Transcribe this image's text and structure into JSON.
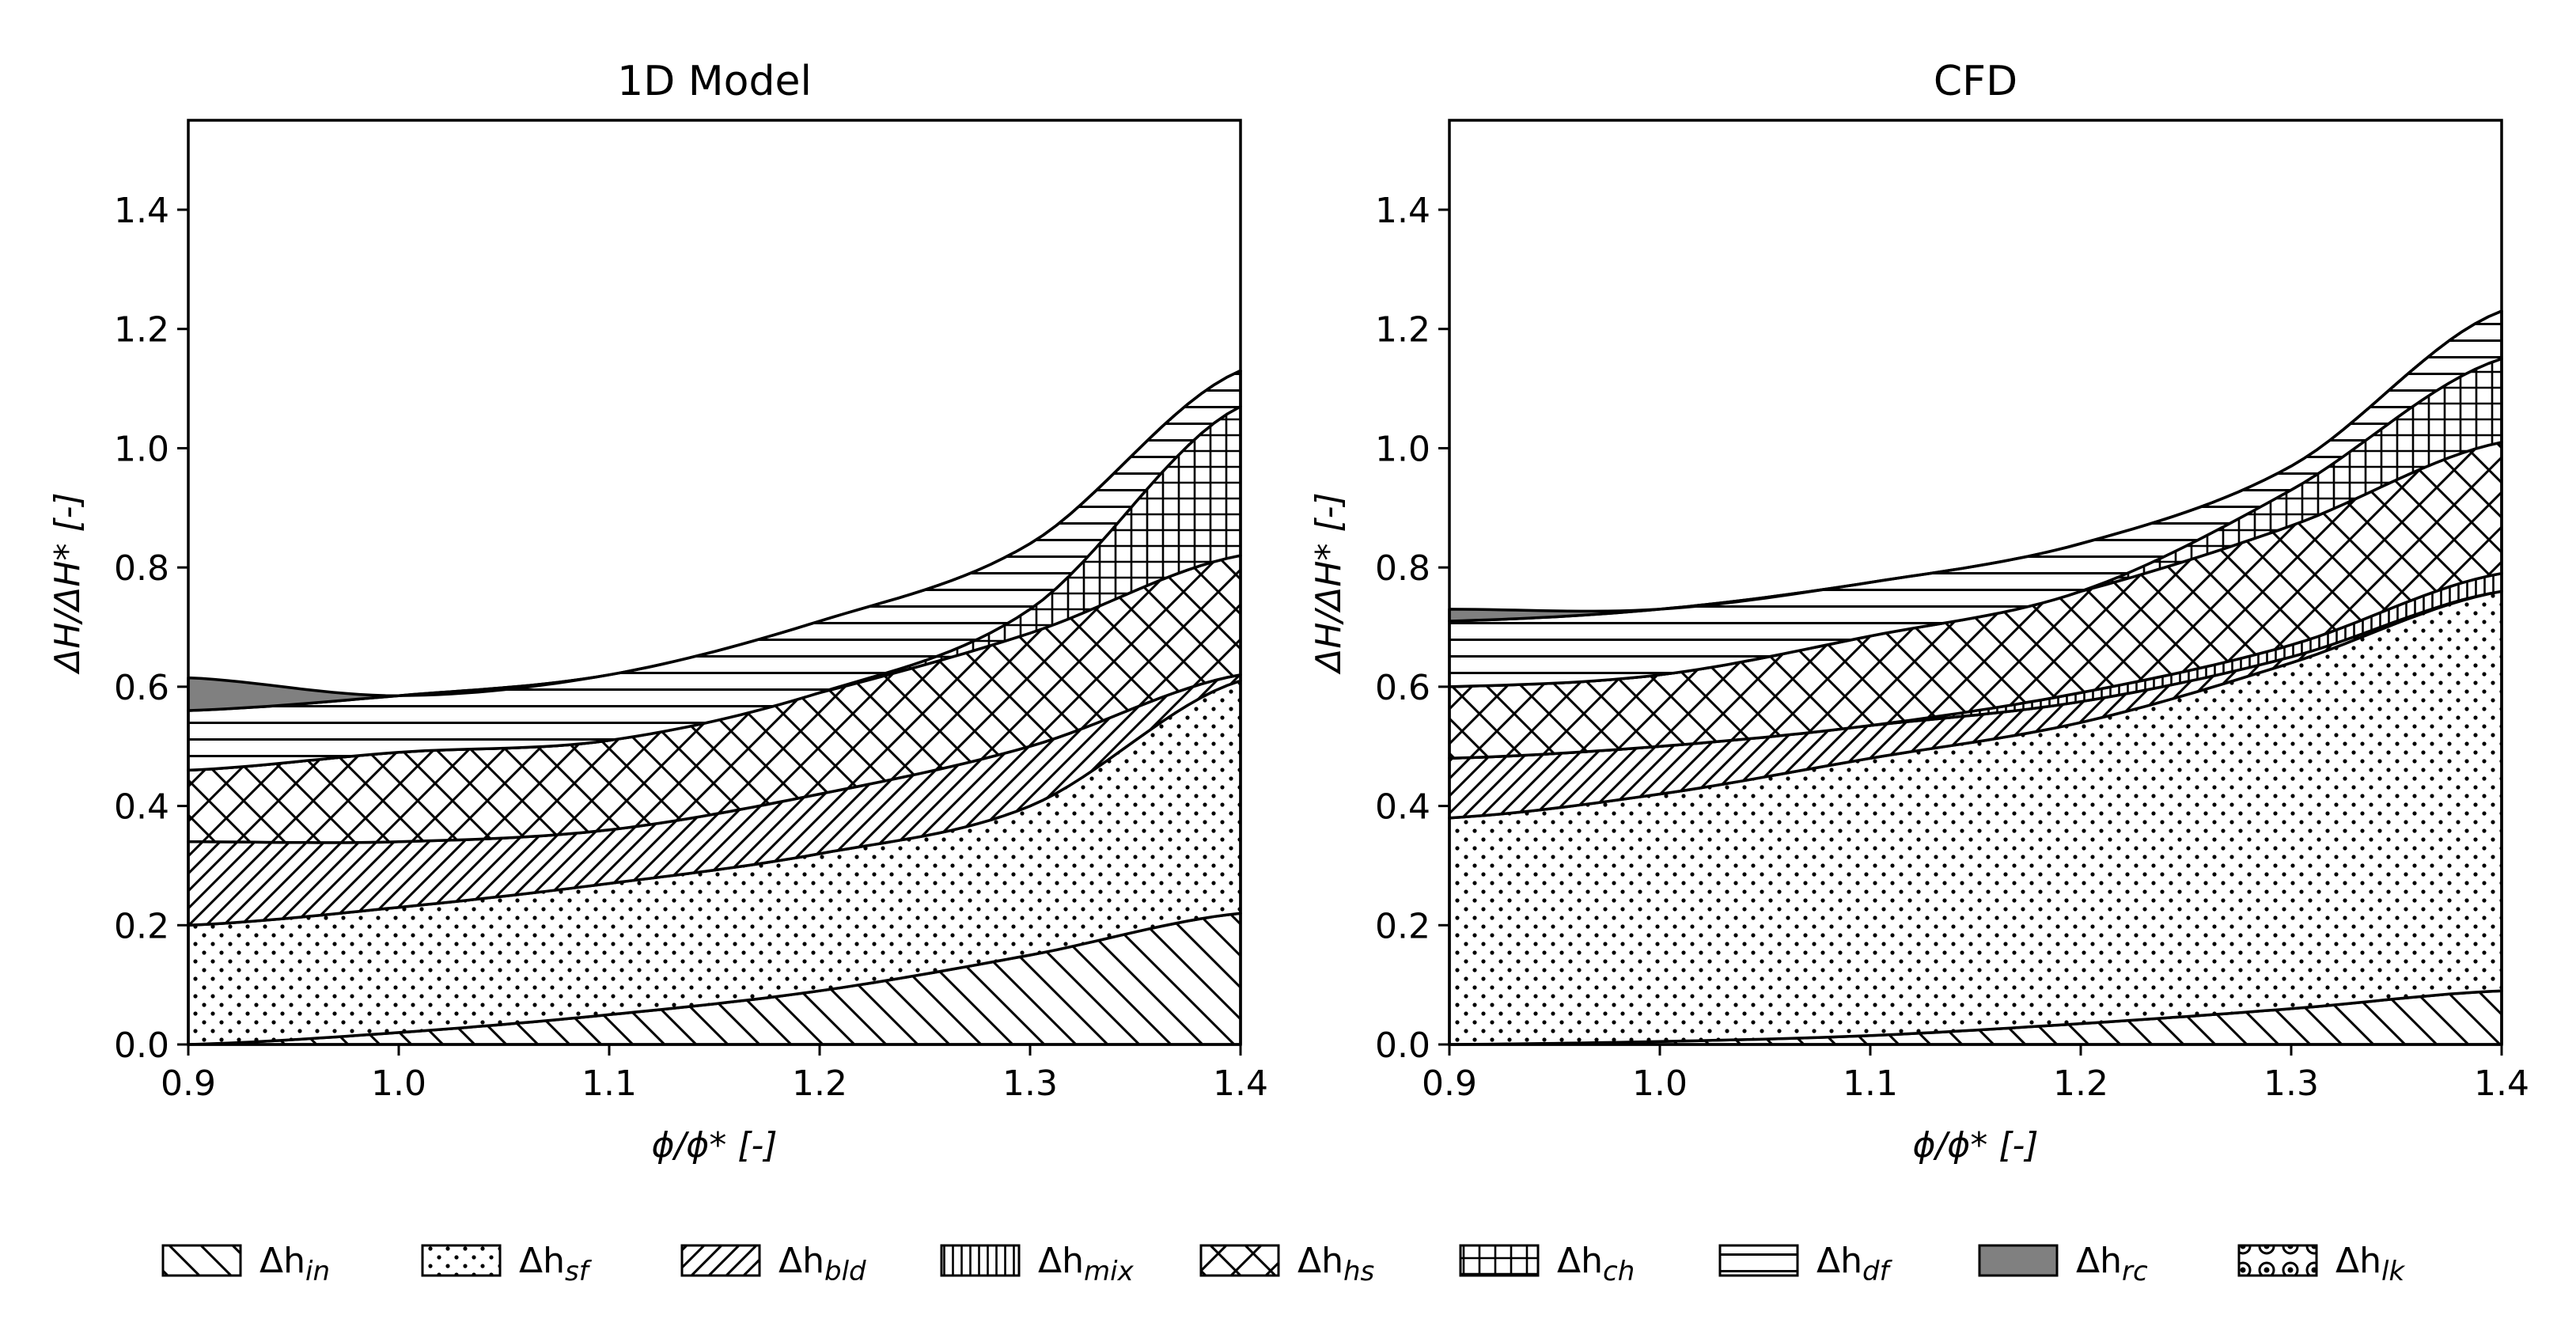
{
  "figure": {
    "legend": {
      "placement": "bottom",
      "entries": [
        {
          "key": "in",
          "label": "Δh",
          "sub": "in",
          "pattern": "backslash"
        },
        {
          "key": "sf",
          "label": "Δh",
          "sub": "sf",
          "pattern": "dots"
        },
        {
          "key": "bld",
          "label": "Δh",
          "sub": "bld",
          "pattern": "slash"
        },
        {
          "key": "mix",
          "label": "Δh",
          "sub": "mix",
          "pattern": "vertical"
        },
        {
          "key": "hs",
          "label": "Δh",
          "sub": "hs",
          "pattern": "crosshatch"
        },
        {
          "key": "ch",
          "label": "Δh",
          "sub": "ch",
          "pattern": "grid"
        },
        {
          "key": "df",
          "label": "Δh",
          "sub": "df",
          "pattern": "horizontal"
        },
        {
          "key": "rc",
          "label": "Δh",
          "sub": "rc",
          "pattern": "gray",
          "color": "#808080"
        },
        {
          "key": "lk",
          "label": "Δh",
          "sub": "lk",
          "pattern": "rings"
        }
      ]
    }
  },
  "chart_data": [
    {
      "type": "area",
      "title": "1D Model",
      "xlabel": "ϕ/ϕ* [-]",
      "ylabel": "ΔH/ΔH* [-]",
      "xlim": [
        0.9,
        1.4
      ],
      "ylim": [
        0.0,
        1.55
      ],
      "xticks": [
        0.9,
        1.0,
        1.1,
        1.2,
        1.3,
        1.4
      ],
      "xtick_labels": [
        "0.9",
        "1.0",
        "1.1",
        "1.2",
        "1.3",
        "1.4"
      ],
      "yticks": [
        0.0,
        0.2,
        0.4,
        0.6,
        0.8,
        1.0,
        1.2,
        1.4
      ],
      "ytick_labels": [
        "0.0",
        "0.2",
        "0.4",
        "0.6",
        "0.8",
        "1.0",
        "1.2",
        "1.4"
      ],
      "grid": false,
      "stacked": true,
      "x": [
        0.9,
        1.0,
        1.1,
        1.2,
        1.3,
        1.4
      ],
      "series": [
        {
          "key": "in",
          "values": [
            0.0,
            0.02,
            0.05,
            0.09,
            0.15,
            0.22
          ]
        },
        {
          "key": "sf",
          "values": [
            0.2,
            0.21,
            0.22,
            0.23,
            0.25,
            0.39
          ]
        },
        {
          "key": "bld",
          "values": [
            0.14,
            0.11,
            0.09,
            0.1,
            0.1,
            0.01
          ]
        },
        {
          "key": "mix",
          "values": [
            0.0,
            0.0,
            0.0,
            0.0,
            0.0,
            0.0
          ]
        },
        {
          "key": "hs",
          "values": [
            0.12,
            0.15,
            0.15,
            0.17,
            0.19,
            0.2
          ]
        },
        {
          "key": "ch",
          "values": [
            0.0,
            0.0,
            0.0,
            0.0,
            0.04,
            0.25
          ]
        },
        {
          "key": "df",
          "values": [
            0.1,
            0.095,
            0.11,
            0.12,
            0.11,
            0.06
          ]
        },
        {
          "key": "rc",
          "values": [
            0.055,
            0.0,
            0.0,
            0.0,
            0.0,
            0.0
          ]
        },
        {
          "key": "lk",
          "values": [
            0.0,
            0.0,
            0.0,
            0.0,
            0.0,
            0.0
          ]
        }
      ]
    },
    {
      "type": "area",
      "title": "CFD",
      "xlabel": "ϕ/ϕ* [-]",
      "ylabel": "ΔH/ΔH* [-]",
      "xlim": [
        0.9,
        1.4
      ],
      "ylim": [
        0.0,
        1.55
      ],
      "xticks": [
        0.9,
        1.0,
        1.1,
        1.2,
        1.3,
        1.4
      ],
      "xtick_labels": [
        "0.9",
        "1.0",
        "1.1",
        "1.2",
        "1.3",
        "1.4"
      ],
      "yticks": [
        0.0,
        0.2,
        0.4,
        0.6,
        0.8,
        1.0,
        1.2,
        1.4
      ],
      "ytick_labels": [
        "0.0",
        "0.2",
        "0.4",
        "0.6",
        "0.8",
        "1.0",
        "1.2",
        "1.4"
      ],
      "grid": false,
      "stacked": true,
      "x": [
        0.9,
        1.0,
        1.1,
        1.2,
        1.3,
        1.4
      ],
      "series": [
        {
          "key": "in",
          "values": [
            0.0,
            0.005,
            0.015,
            0.035,
            0.06,
            0.09
          ]
        },
        {
          "key": "sf",
          "values": [
            0.38,
            0.415,
            0.465,
            0.505,
            0.58,
            0.67
          ]
        },
        {
          "key": "bld",
          "values": [
            0.1,
            0.08,
            0.055,
            0.035,
            0.01,
            0.0
          ]
        },
        {
          "key": "mix",
          "values": [
            0.0,
            0.0,
            0.0,
            0.015,
            0.02,
            0.03
          ]
        },
        {
          "key": "hs",
          "values": [
            0.12,
            0.12,
            0.15,
            0.17,
            0.2,
            0.22
          ]
        },
        {
          "key": "ch",
          "values": [
            0.0,
            0.0,
            0.0,
            0.0,
            0.06,
            0.14
          ]
        },
        {
          "key": "df",
          "values": [
            0.11,
            0.11,
            0.09,
            0.08,
            0.04,
            0.08
          ]
        },
        {
          "key": "rc",
          "values": [
            0.02,
            0.0,
            0.0,
            0.0,
            0.0,
            0.0
          ]
        },
        {
          "key": "lk",
          "values": [
            0.0,
            0.0,
            0.0,
            0.0,
            0.0,
            0.0
          ]
        }
      ]
    }
  ]
}
